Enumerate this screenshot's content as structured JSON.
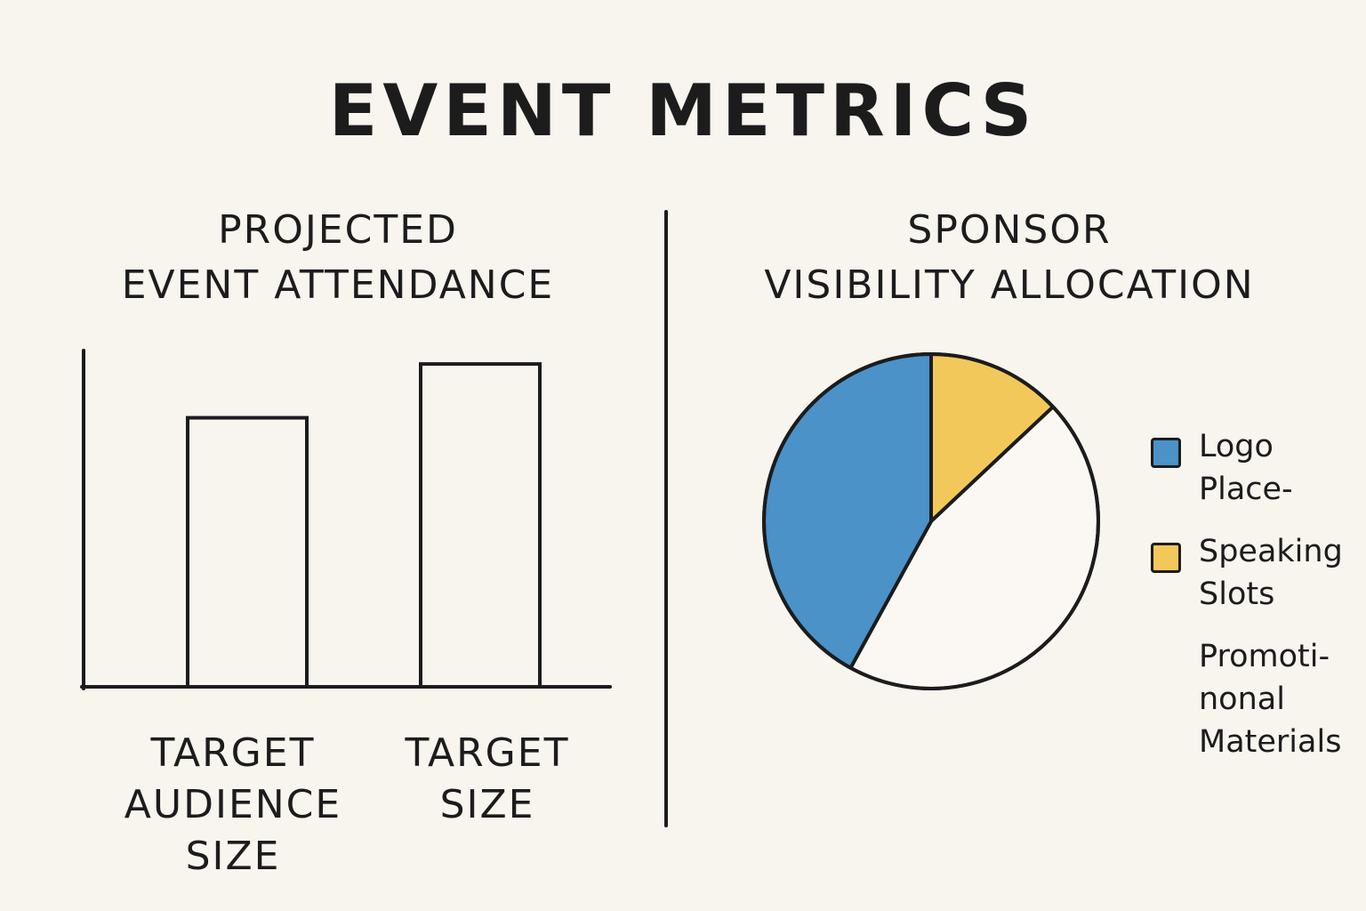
{
  "title": "EVENT METRICS",
  "colors": {
    "blue": "#4a92c8",
    "yellow": "#f3c85b",
    "white": "#fbf8f3",
    "ink": "#1c1c1c"
  },
  "chart_data": [
    {
      "type": "bar",
      "title_lines": [
        "PROJECTED",
        "EVENT ATTENDANCE"
      ],
      "categories": [
        [
          "TARGET",
          "AUDIENCE",
          "SIZE"
        ],
        [
          "TARGET",
          "SIZE"
        ]
      ],
      "values": [
        80,
        96
      ],
      "ylim": [
        0,
        100
      ],
      "fill": "none",
      "grid": false
    },
    {
      "type": "pie",
      "title_lines": [
        "SPONSOR",
        "VISIBILITY ALLOCATION"
      ],
      "slices": [
        {
          "label_lines": [
            "Logo",
            "Place-"
          ],
          "value": 42,
          "color": "#4a92c8"
        },
        {
          "label_lines": [
            "Speaking",
            "Slots"
          ],
          "value": 13,
          "color": "#f3c85b"
        },
        {
          "label_lines": [
            "Promoti-",
            "nonal",
            "Materials"
          ],
          "value": 45,
          "color": "#fbf8f3"
        }
      ],
      "legend": "right"
    }
  ]
}
